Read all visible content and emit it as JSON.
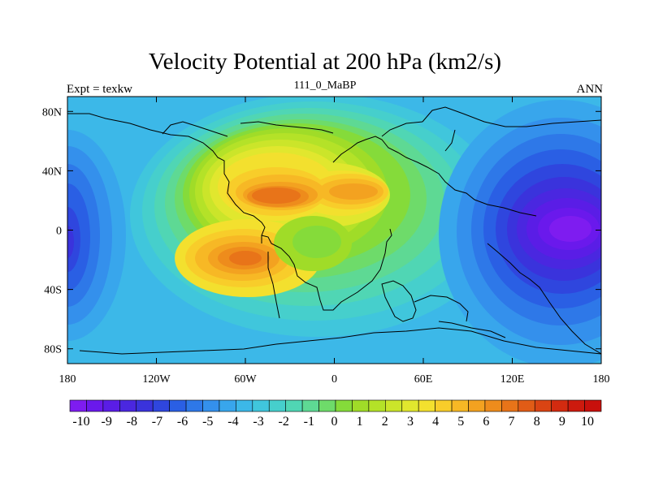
{
  "chart_data": {
    "type": "heatmap",
    "title": "Velocity Potential at 200 hPa (km2/s)",
    "left_string": "Expt = texkw",
    "center_string": "111_0_MaBP",
    "right_string": "ANN",
    "xlim": [
      -180,
      180
    ],
    "ylim": [
      -90,
      90
    ],
    "x_ticks": [
      {
        "value": -180,
        "label": "180"
      },
      {
        "value": -120,
        "label": "120W"
      },
      {
        "value": -60,
        "label": "60W"
      },
      {
        "value": 0,
        "label": "0"
      },
      {
        "value": 60,
        "label": "60E"
      },
      {
        "value": 120,
        "label": "120E"
      },
      {
        "value": 180,
        "label": "180"
      }
    ],
    "y_ticks": [
      {
        "value": 80,
        "label": "80N"
      },
      {
        "value": 40,
        "label": "40N"
      },
      {
        "value": 0,
        "label": "0"
      },
      {
        "value": -40,
        "label": "40S"
      },
      {
        "value": -80,
        "label": "80S"
      }
    ],
    "field_features": [
      {
        "kind": "max",
        "lon": -35,
        "lat": 22,
        "value": 8.5
      },
      {
        "kind": "max",
        "lon": -50,
        "lat": -18,
        "value": 7.5
      },
      {
        "kind": "max",
        "lon": 15,
        "lat": 25,
        "value": 6.5
      },
      {
        "kind": "min",
        "lon": 160,
        "lat": 0,
        "value": -9.5
      },
      {
        "kind": "min",
        "lon": -180,
        "lat": -12,
        "value": -6.5
      }
    ],
    "colorbar": {
      "levels": [
        -10,
        -9,
        -8,
        -7,
        -6,
        -5,
        -4,
        -3,
        -2,
        -1,
        0,
        1,
        2,
        3,
        4,
        5,
        6,
        7,
        8,
        9,
        10
      ],
      "labels": [
        "-10",
        "-9",
        "-8",
        "-7",
        "-6",
        "-5",
        "-4",
        "-3",
        "-2",
        "-1",
        "0",
        "1",
        "2",
        "3",
        "4",
        "5",
        "6",
        "7",
        "8",
        "9",
        "10"
      ],
      "colors": [
        "#7e1cf0",
        "#6a19ec",
        "#5a1de6",
        "#4a27e0",
        "#3a33dc",
        "#2f46de",
        "#2a5fe4",
        "#2e78e8",
        "#3490ec",
        "#38a6ec",
        "#3cb8e8",
        "#40c6dc",
        "#46cfcc",
        "#50d6b4",
        "#5ed994",
        "#6edb6a",
        "#85db3a",
        "#a0dc28",
        "#b4e228",
        "#cbe52a",
        "#e1e72e",
        "#f3e02e",
        "#f8cd2a",
        "#f7b825",
        "#f3a220",
        "#ee8c1c",
        "#e87419",
        "#e15c16",
        "#da4413",
        "#d32b10",
        "#cd1a0e",
        "#c8100c"
      ]
    }
  }
}
